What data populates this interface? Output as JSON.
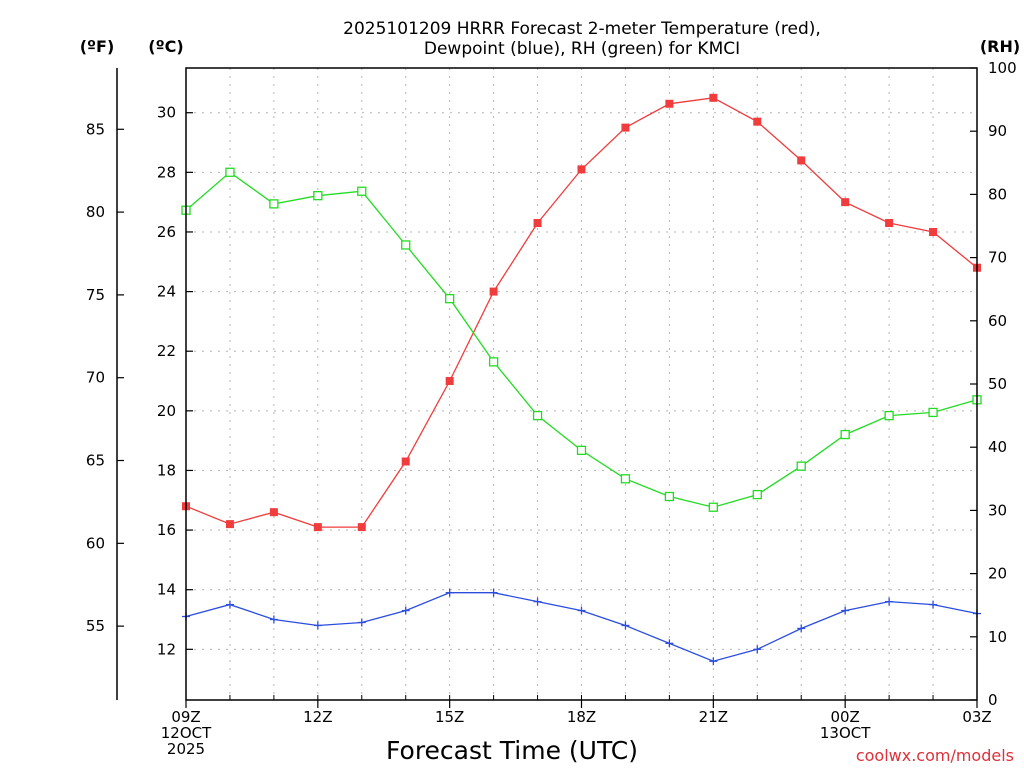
{
  "chart_data": {
    "type": "line",
    "title_lines": [
      "2025101209 HRRR Forecast 2-meter Temperature (red),",
      "Dewpoint (blue), RH (green) for KMCI"
    ],
    "xlabel": "Forecast Time (UTC)",
    "credit": "coolwx.com/models",
    "units": {
      "f": "(ºF)",
      "c": "(ºC)",
      "rh": "(RH)"
    },
    "x_hours": [
      0,
      1,
      2,
      3,
      4,
      5,
      6,
      7,
      8,
      9,
      10,
      11,
      12,
      13,
      14,
      15,
      16,
      17,
      18
    ],
    "x_ticks": [
      {
        "hour": 0,
        "lines": [
          "09Z",
          "12OCT",
          "2025"
        ]
      },
      {
        "hour": 3,
        "lines": [
          "12Z"
        ]
      },
      {
        "hour": 6,
        "lines": [
          "15Z"
        ]
      },
      {
        "hour": 9,
        "lines": [
          "18Z"
        ]
      },
      {
        "hour": 12,
        "lines": [
          "21Z"
        ]
      },
      {
        "hour": 15,
        "lines": [
          "00Z",
          "13OCT"
        ]
      },
      {
        "hour": 18,
        "lines": [
          "03Z"
        ]
      }
    ],
    "y_celsius": {
      "range": [
        10.3,
        31.5
      ],
      "ticks": [
        12,
        14,
        16,
        18,
        20,
        22,
        24,
        26,
        28,
        30
      ]
    },
    "y_fahrenheit": {
      "ticks": [
        55,
        60,
        65,
        70,
        75,
        80,
        85
      ]
    },
    "y_rh": {
      "range": [
        0,
        100
      ],
      "ticks": [
        0,
        10,
        20,
        30,
        40,
        50,
        60,
        70,
        80,
        90,
        100
      ]
    },
    "grid": true,
    "series": [
      {
        "name": "Temperature",
        "axis": "celsius",
        "color": "#f03c3c",
        "marker": "filled-square",
        "values": [
          16.8,
          16.2,
          16.6,
          16.1,
          16.1,
          18.3,
          21.0,
          24.0,
          26.3,
          28.1,
          29.5,
          30.3,
          30.5,
          29.7,
          28.4,
          27.0,
          26.3,
          26.0,
          24.8
        ]
      },
      {
        "name": "Dewpoint",
        "axis": "celsius",
        "color": "#2b4de0",
        "marker": "plus",
        "values": [
          13.1,
          13.5,
          13.0,
          12.8,
          12.9,
          13.3,
          13.9,
          13.9,
          13.6,
          13.3,
          12.8,
          12.2,
          11.6,
          12.0,
          12.7,
          13.3,
          13.6,
          13.5,
          13.2
        ]
      },
      {
        "name": "RH",
        "axis": "rh",
        "color": "#22dc22",
        "marker": "open-square",
        "values": [
          77.5,
          83.5,
          78.5,
          79.8,
          80.5,
          72.0,
          63.5,
          53.5,
          45.0,
          39.5,
          35.0,
          32.2,
          30.5,
          32.5,
          37.0,
          42.0,
          45.0,
          45.5,
          47.5
        ]
      }
    ]
  }
}
